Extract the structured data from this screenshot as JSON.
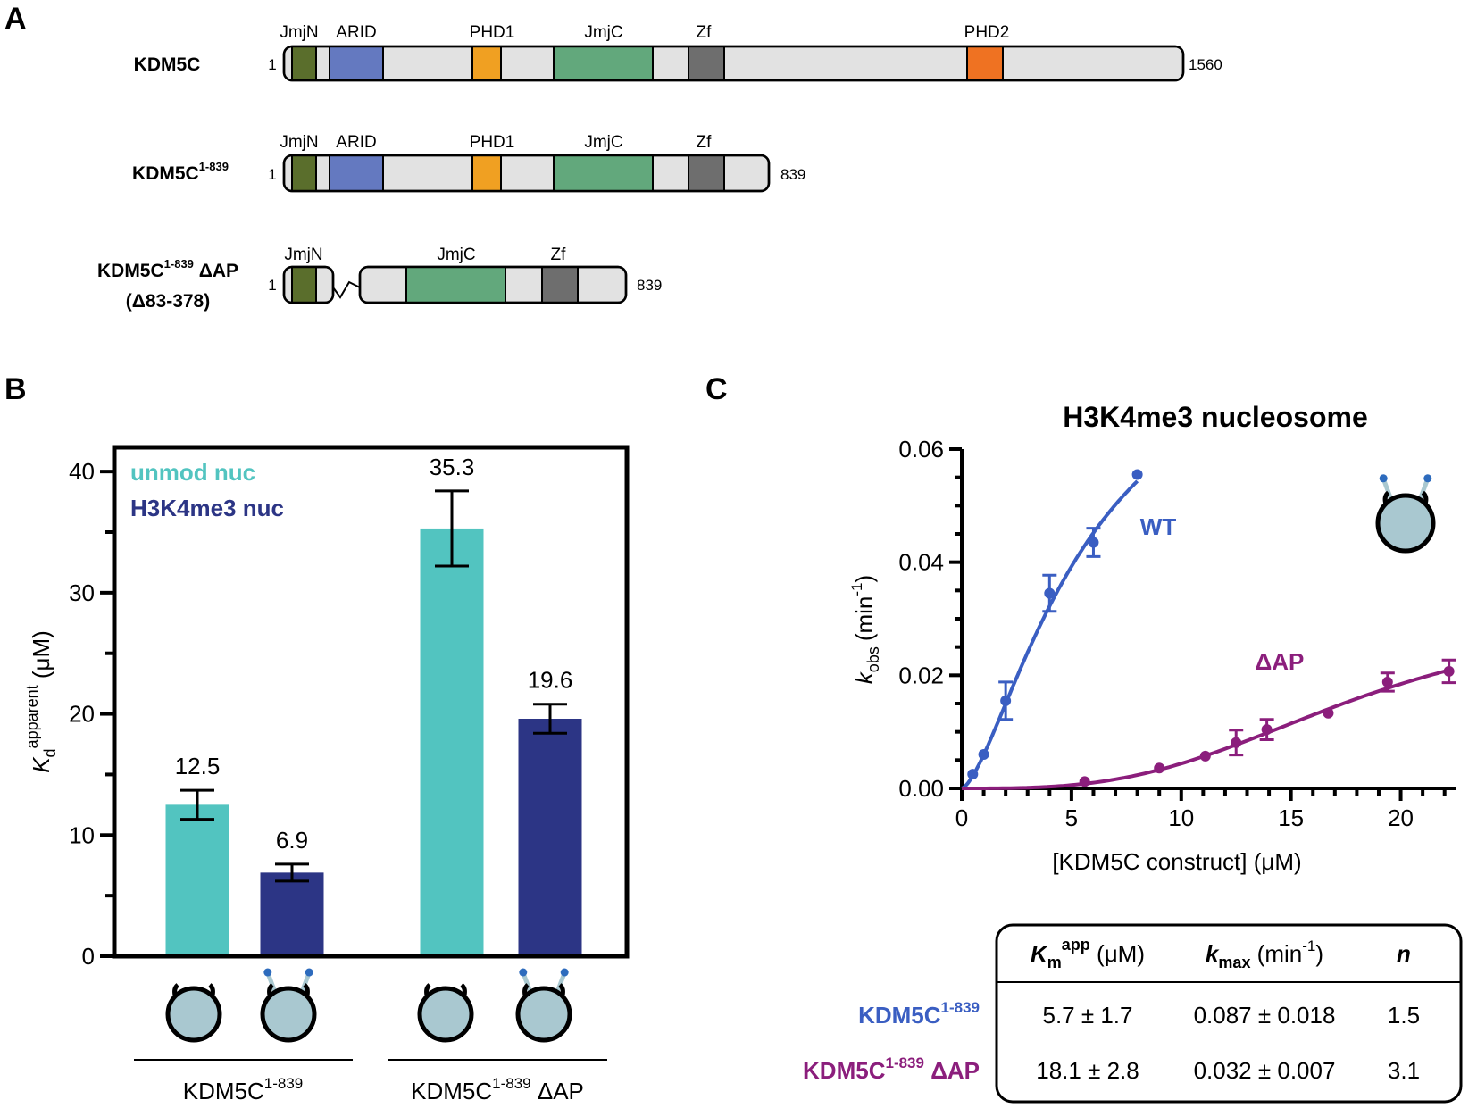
{
  "panel_labels": {
    "a": "A",
    "b": "B",
    "c": "C"
  },
  "panelA": {
    "constructs": [
      {
        "name": "KDM5C",
        "name_sup": "",
        "name_suffix": "",
        "name_line2": "",
        "start_label": "1",
        "end_label": "1560",
        "domains": [
          {
            "label": "JmjN",
            "color": "#5a6e2c"
          },
          {
            "label": "ARID",
            "color": "#6479c0"
          },
          {
            "label": "PHD1",
            "color": "#f0a022"
          },
          {
            "label": "JmjC",
            "color": "#62a87c"
          },
          {
            "label": "Zf",
            "color": "#6e6e6e"
          },
          {
            "label": "PHD2",
            "color": "#ef7222"
          }
        ]
      },
      {
        "name": "KDM5C",
        "name_sup": "1-839",
        "name_suffix": "",
        "name_line2": "",
        "start_label": "1",
        "end_label": "839",
        "domains": [
          {
            "label": "JmjN",
            "color": "#5a6e2c"
          },
          {
            "label": "ARID",
            "color": "#6479c0"
          },
          {
            "label": "PHD1",
            "color": "#f0a022"
          },
          {
            "label": "JmjC",
            "color": "#62a87c"
          },
          {
            "label": "Zf",
            "color": "#6e6e6e"
          }
        ]
      },
      {
        "name": "KDM5C",
        "name_sup": "1-839",
        "name_suffix": " ΔAP",
        "name_line2": "(Δ83-378)",
        "start_label": "1",
        "end_label": "839",
        "domains": [
          {
            "label": "JmjN",
            "color": "#5a6e2c"
          },
          {
            "label": "JmjC",
            "color": "#62a87c"
          },
          {
            "label": "Zf",
            "color": "#6e6e6e"
          }
        ]
      }
    ]
  },
  "chart_data": [
    {
      "type": "bar",
      "title": "",
      "ylabel": "K",
      "ylabel_sub": "d",
      "ylabel_sup": "apparent",
      "ylabel_unit": " (μM)",
      "ylim": [
        0,
        42
      ],
      "yticks": [
        "0",
        "10",
        "20",
        "30",
        "40"
      ],
      "legend_position": "top-left",
      "groups": [
        {
          "name": "KDM5C",
          "name_sup": "1-839",
          "name_suffix": ""
        },
        {
          "name": "KDM5C",
          "name_sup": "1-839",
          "name_suffix": " ΔAP"
        }
      ],
      "series": [
        {
          "name": "unmod nuc",
          "color": "#52c4c0",
          "values": [
            12.5,
            35.3
          ],
          "errors": [
            1.2,
            3.1
          ],
          "labels": [
            "12.5",
            "35.3"
          ]
        },
        {
          "name": "H3K4me3 nuc",
          "color": "#2c3585",
          "values": [
            6.9,
            19.6
          ],
          "errors": [
            0.7,
            1.2
          ],
          "labels": [
            "6.9",
            "19.6"
          ]
        }
      ]
    },
    {
      "type": "scatter",
      "title": "H3K4me3 nucleosome",
      "xlabel": "[KDM5C construct] (μM)",
      "ylabel_k": "k",
      "ylabel_sub": "obs",
      "ylabel_unit": "(min",
      "ylabel_sup": "-1",
      "ylabel_close": ")",
      "xlim": [
        0,
        22.5
      ],
      "ylim": [
        0,
        0.06
      ],
      "xticks": [
        "0",
        "5",
        "10",
        "15",
        "20"
      ],
      "yticks": [
        "0.00",
        "0.02",
        "0.04",
        "0.06"
      ],
      "series": [
        {
          "name": "WT",
          "color": "#3a5ec2",
          "fit": {
            "kmax": 0.087,
            "km": 5.7,
            "n": 1.5
          },
          "points": [
            {
              "x": 0.5,
              "y": 0.0025,
              "err": 0
            },
            {
              "x": 1.0,
              "y": 0.006,
              "err": 0
            },
            {
              "x": 2.0,
              "y": 0.0155,
              "err": 0.0033
            },
            {
              "x": 4.0,
              "y": 0.0345,
              "err": 0.0032
            },
            {
              "x": 6.0,
              "y": 0.0435,
              "err": 0.0025
            },
            {
              "x": 8.0,
              "y": 0.0555,
              "err": 0
            }
          ]
        },
        {
          "name": "ΔAP",
          "color": "#8b1e7c",
          "fit": {
            "kmax": 0.032,
            "km": 18.1,
            "n": 3.1
          },
          "points": [
            {
              "x": 5.6,
              "y": 0.0012,
              "err": 0
            },
            {
              "x": 9.0,
              "y": 0.0036,
              "err": 0
            },
            {
              "x": 11.1,
              "y": 0.0057,
              "err": 0
            },
            {
              "x": 12.5,
              "y": 0.0081,
              "err": 0.0022
            },
            {
              "x": 13.9,
              "y": 0.0104,
              "err": 0.0018
            },
            {
              "x": 16.7,
              "y": 0.0133,
              "err": 0
            },
            {
              "x": 19.4,
              "y": 0.0188,
              "err": 0.0016
            },
            {
              "x": 22.2,
              "y": 0.0207,
              "err": 0.002
            }
          ]
        }
      ]
    },
    {
      "type": "table",
      "headers": [
        {
          "main": "K",
          "sub": "m",
          "sup": "app",
          "unit": " (μM)",
          "unit_sup": "",
          "unit_close": ""
        },
        {
          "main": "k",
          "sub": "max",
          "sup": "",
          "unit": " (min",
          "unit_sup": "-1",
          "unit_close": ")"
        },
        {
          "main": "n",
          "sub": "",
          "sup": "",
          "unit": "",
          "unit_sup": "",
          "unit_close": ""
        }
      ],
      "rows": [
        {
          "name": "KDM5C",
          "name_sup": "1-839",
          "name_suffix": "",
          "color": "#3a5ec2",
          "values": [
            "5.7 ± 1.7",
            "0.087 ± 0.018",
            "1.5"
          ]
        },
        {
          "name": "KDM5C",
          "name_sup": "1-839",
          "name_suffix": " ΔAP",
          "color": "#8b1e7c",
          "values": [
            "18.1 ± 2.8",
            "0.032 ± 0.007",
            "3.1"
          ]
        }
      ]
    }
  ],
  "icons": {
    "nucleosome_fill": "#a9c8d0",
    "tail_color": "#a9c8d0",
    "mark_color": "#2d6bbd",
    "bar_icons": [
      "nucleosome-icon",
      "methylated-nucleosome-icon",
      "nucleosome-icon",
      "methylated-nucleosome-icon"
    ],
    "panel_c_icon": "methylated-nucleosome-icon"
  }
}
